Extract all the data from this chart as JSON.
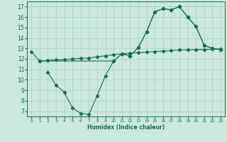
{
  "xlabel": "Humidex (Indice chaleur)",
  "xlim": [
    -0.5,
    23.5
  ],
  "ylim": [
    6.5,
    17.5
  ],
  "yticks": [
    7,
    8,
    9,
    10,
    11,
    12,
    13,
    14,
    15,
    16,
    17
  ],
  "xticks": [
    0,
    1,
    2,
    3,
    4,
    5,
    6,
    7,
    8,
    9,
    10,
    11,
    12,
    13,
    14,
    15,
    16,
    17,
    18,
    19,
    20,
    21,
    22,
    23
  ],
  "bg_color": "#cce8df",
  "grid_color": "#aacfc5",
  "line_color": "#1a6b5a",
  "line1_x": [
    0,
    1,
    10,
    11,
    12,
    13,
    14,
    15,
    16,
    17,
    18,
    19,
    20,
    21,
    22,
    23
  ],
  "line1_y": [
    12.7,
    11.8,
    11.8,
    12.5,
    12.3,
    13.1,
    14.6,
    16.5,
    16.8,
    16.7,
    17.0,
    16.0,
    15.1,
    13.3,
    13.0,
    12.9
  ],
  "line2_x": [
    2,
    3,
    4,
    5,
    6,
    7,
    8,
    9,
    10,
    11,
    12,
    13,
    14,
    15,
    16,
    17,
    18,
    19,
    20,
    21,
    22,
    23
  ],
  "line2_y": [
    10.7,
    9.5,
    8.8,
    7.3,
    6.8,
    6.7,
    8.5,
    10.4,
    11.8,
    12.5,
    12.3,
    13.1,
    14.6,
    16.5,
    16.8,
    16.7,
    17.0,
    16.0,
    15.1,
    13.3,
    13.0,
    12.9
  ],
  "line3_x": [
    1,
    2,
    3,
    4,
    5,
    6,
    7,
    8,
    9,
    10,
    11,
    12,
    13,
    14,
    15,
    16,
    17,
    18,
    19,
    20,
    21,
    22,
    23
  ],
  "line3_y": [
    11.8,
    11.85,
    11.9,
    11.95,
    12.0,
    12.05,
    12.1,
    12.2,
    12.3,
    12.4,
    12.5,
    12.55,
    12.6,
    12.65,
    12.7,
    12.75,
    12.8,
    12.85,
    12.87,
    12.89,
    12.9,
    12.92,
    12.95
  ]
}
